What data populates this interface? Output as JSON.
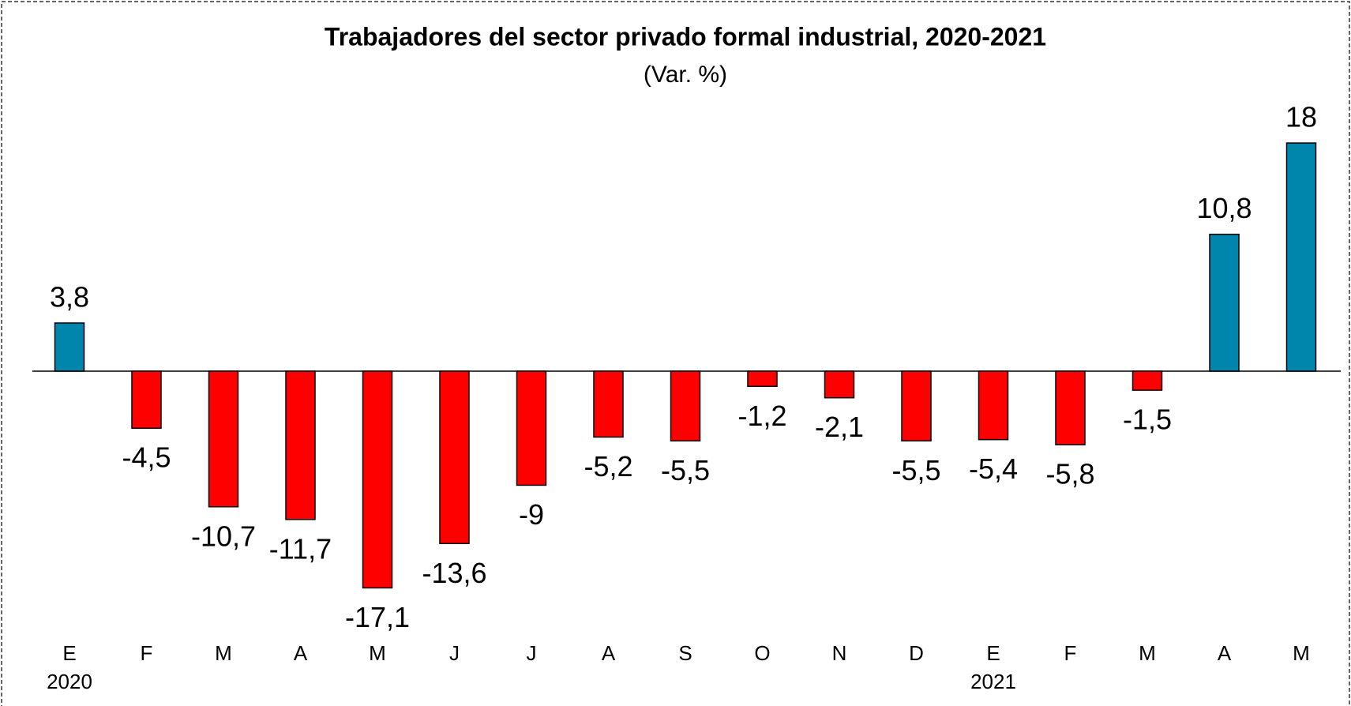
{
  "chart_data": {
    "type": "bar",
    "title": "Trabajadores del sector privado formal industrial, 2020-2021",
    "subtitle": "(Var. %)",
    "categories": [
      "E",
      "F",
      "M",
      "A",
      "M",
      "J",
      "J",
      "A",
      "S",
      "O",
      "N",
      "D",
      "E",
      "F",
      "M",
      "A",
      "M"
    ],
    "year_labels": [
      "2020",
      null,
      null,
      null,
      null,
      null,
      null,
      null,
      null,
      null,
      null,
      null,
      "2021",
      null,
      null,
      null,
      null
    ],
    "values": [
      3.8,
      -4.5,
      -10.7,
      -11.7,
      -17.1,
      -13.6,
      -9,
      -5.2,
      -5.5,
      -1.2,
      -2.1,
      -5.5,
      -5.4,
      -5.8,
      -1.5,
      10.8,
      18
    ],
    "value_labels": [
      "3,8",
      "-4,5",
      "-10,7",
      "-11,7",
      "-17,1",
      "-13,6",
      "-9",
      "-5,2",
      "-5,5",
      "-1,2",
      "-2,1",
      "-5,5",
      "-5,4",
      "-5,8",
      "-1,5",
      "10,8",
      "18"
    ],
    "color_positive": "#0085ad",
    "color_negative": "#ff0000"
  }
}
